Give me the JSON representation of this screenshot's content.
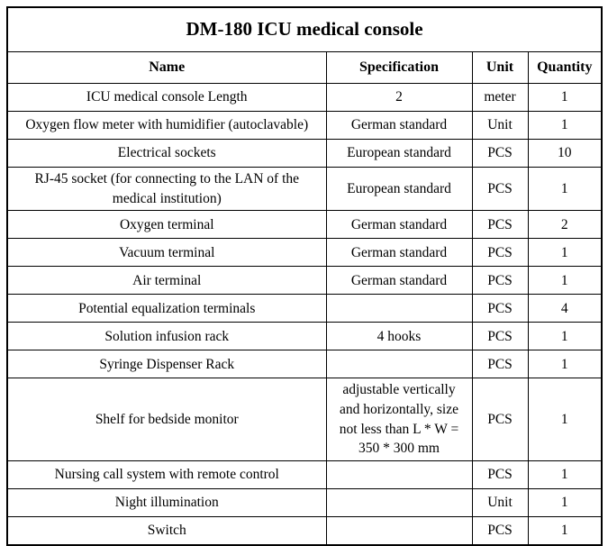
{
  "table": {
    "title": "DM-180 ICU medical console",
    "columns": {
      "name": "Name",
      "specification": "Specification",
      "unit": "Unit",
      "quantity": "Quantity"
    },
    "border_color": "#000000",
    "text_color": "#000000",
    "background_color": "#ffffff",
    "rows": [
      {
        "name": "ICU medical console Length",
        "specification": "2",
        "unit": "meter",
        "quantity": "1"
      },
      {
        "name": "Oxygen flow meter with humidifier (autoclavable)",
        "specification": "German standard",
        "unit": "Unit",
        "quantity": "1"
      },
      {
        "name": "Electrical sockets",
        "specification": "European standard",
        "unit": "PCS",
        "quantity": "10"
      },
      {
        "name": "RJ-45 socket (for connecting to the LAN of the medical institution)",
        "specification": "European standard",
        "unit": "PCS",
        "quantity": "1"
      },
      {
        "name": "Oxygen terminal",
        "specification": "German standard",
        "unit": "PCS",
        "quantity": "2"
      },
      {
        "name": "Vacuum terminal",
        "specification": "German standard",
        "unit": "PCS",
        "quantity": "1"
      },
      {
        "name": "Air terminal",
        "specification": "German standard",
        "unit": "PCS",
        "quantity": "1"
      },
      {
        "name": "Potential equalization terminals",
        "specification": "",
        "unit": "PCS",
        "quantity": "4"
      },
      {
        "name": "Solution infusion rack",
        "specification": "4 hooks",
        "unit": "PCS",
        "quantity": "1"
      },
      {
        "name": "Syringe Dispenser Rack",
        "specification": "",
        "unit": "PCS",
        "quantity": "1"
      },
      {
        "name": "Shelf for bedside monitor",
        "specification": "adjustable vertically and horizontally, size not less than L * W = 350 * 300 mm",
        "unit": "PCS",
        "quantity": "1"
      },
      {
        "name": "Nursing call system with remote control",
        "specification": "",
        "unit": "PCS",
        "quantity": "1"
      },
      {
        "name": "Night illumination",
        "specification": "",
        "unit": "Unit",
        "quantity": "1"
      },
      {
        "name": "Switch",
        "specification": "",
        "unit": "PCS",
        "quantity": "1"
      }
    ]
  }
}
